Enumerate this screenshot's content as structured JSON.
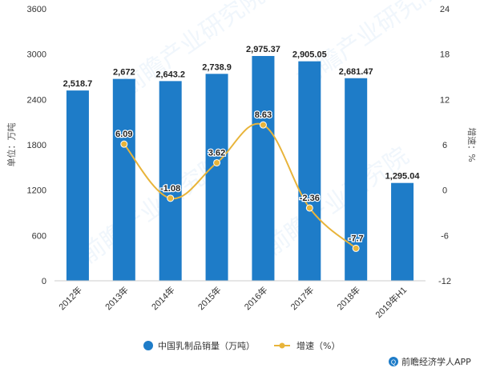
{
  "chart_data": {
    "type": "bar+line",
    "categories": [
      "2012年",
      "2013年",
      "2014年",
      "2015年",
      "2016年",
      "2017年",
      "2018年",
      "2019年H1"
    ],
    "bar_series": {
      "name": "中国乳制品销量（万吨）",
      "values": [
        2518.7,
        2672,
        2643.2,
        2738.9,
        2975.37,
        2905.05,
        2681.47,
        1295.04
      ],
      "labels": [
        "2,518.7",
        "2,672",
        "2,643.2",
        "2,738.9",
        "2,975.37",
        "2,905.05",
        "2,681.47",
        "1,295.04"
      ],
      "color": "#1E7CC8"
    },
    "line_series": {
      "name": "增速（%）",
      "x_categories": [
        "2013年",
        "2014年",
        "2015年",
        "2016年",
        "2017年",
        "2018年"
      ],
      "values": [
        6.09,
        -1.08,
        3.62,
        8.63,
        -2.36,
        -7.7
      ],
      "labels": [
        "6.09",
        "-1.08",
        "3.62",
        "8.63",
        "-2.36",
        "-7.7"
      ],
      "color": "#E8B43A"
    },
    "y_left": {
      "label": "单位：万吨",
      "ylim": [
        0,
        3600
      ],
      "ticks": [
        "0",
        "600",
        "1200",
        "1800",
        "2400",
        "3000",
        "3600"
      ]
    },
    "y_right": {
      "label": "增速：%",
      "ylim": [
        -12,
        24
      ],
      "ticks": [
        "-12",
        "-6",
        "0",
        "6",
        "12",
        "18",
        "24"
      ]
    },
    "legend_position": "bottom",
    "grid": false
  },
  "watermark": "前瞻产业研究院",
  "footer": {
    "brand": "前瞻经济学人APP"
  }
}
